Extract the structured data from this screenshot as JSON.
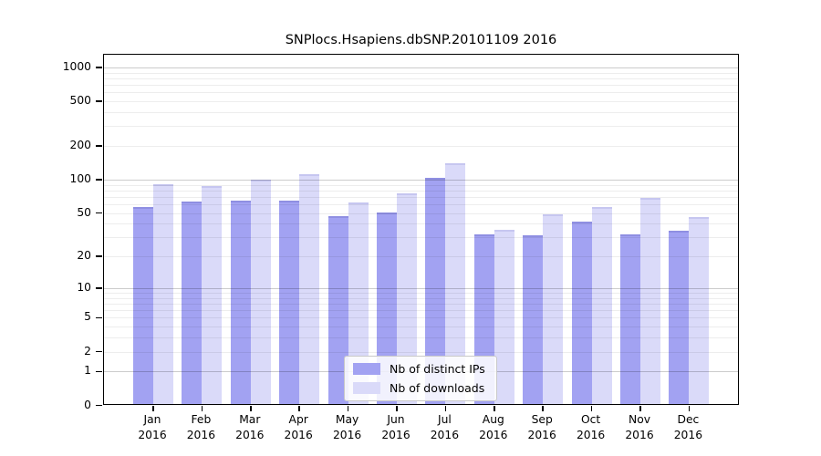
{
  "chart_data": {
    "type": "bar",
    "title": "SNPlocs.Hsapiens.dbSNP.20101109 2016",
    "categories": [
      "Jan",
      "Feb",
      "Mar",
      "Apr",
      "May",
      "Jun",
      "Jul",
      "Aug",
      "Sep",
      "Oct",
      "Nov",
      "Dec"
    ],
    "year": "2016",
    "series": [
      {
        "name": "Nb of distinct IPs",
        "color": "#a2a2f2",
        "edge_color": "#8f8fe2",
        "values": [
          55,
          61,
          62,
          62,
          45,
          49,
          100,
          31,
          30,
          40,
          31,
          33
        ]
      },
      {
        "name": "Nb of downloads",
        "color": "#dadaf9",
        "edge_color": "#c6c6f0",
        "values": [
          87,
          84,
          96,
          107,
          60,
          73,
          134,
          34,
          47,
          55,
          66,
          44
        ]
      }
    ],
    "y_axis": {
      "scale": "log10(1+x)",
      "tick_values": [
        1000,
        500,
        200,
        100,
        50,
        20,
        10,
        5,
        2,
        1,
        0
      ],
      "ylim": [
        0,
        1296
      ]
    },
    "x_axis": {
      "tick_label_line2": "2016"
    },
    "grid": {
      "enabled": true,
      "minor_color": "#ececec",
      "major_color": "#c8c8c8"
    },
    "legend": {
      "position": "bottom-center-inside"
    },
    "background_color": "#ffffff"
  }
}
